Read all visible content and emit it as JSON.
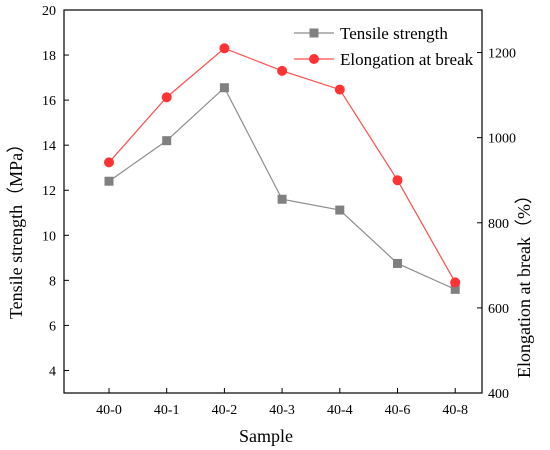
{
  "chart_data": {
    "type": "line",
    "title": "",
    "categories": [
      "40-0",
      "40-1",
      "40-2",
      "40-3",
      "40-4",
      "40-6",
      "40-8"
    ],
    "xlabel": "Sample",
    "ylabel_left": "Tensile strength（MPa）",
    "ylabel_right": "Elongation at break（%）",
    "ylim_left": [
      3,
      20
    ],
    "ylim_right": [
      400,
      1300
    ],
    "yticks_left": [
      4,
      6,
      8,
      10,
      12,
      14,
      16,
      18,
      20
    ],
    "yticks_right": [
      400,
      600,
      800,
      1000,
      1200
    ],
    "legend_position": "top-right",
    "grid": false,
    "series": [
      {
        "name": "Tensile strength",
        "axis": "left",
        "marker": "square",
        "color": "#808080",
        "line_color": "#8c8c8c",
        "values": [
          12.4,
          14.2,
          16.55,
          11.6,
          11.12,
          8.75,
          7.6
        ]
      },
      {
        "name": "Elongation at break",
        "axis": "right",
        "marker": "circle",
        "color": "#ff3333",
        "line_color": "#ff4d4d",
        "values": [
          942,
          1095,
          1210,
          1157,
          1113,
          900,
          660
        ]
      }
    ]
  }
}
